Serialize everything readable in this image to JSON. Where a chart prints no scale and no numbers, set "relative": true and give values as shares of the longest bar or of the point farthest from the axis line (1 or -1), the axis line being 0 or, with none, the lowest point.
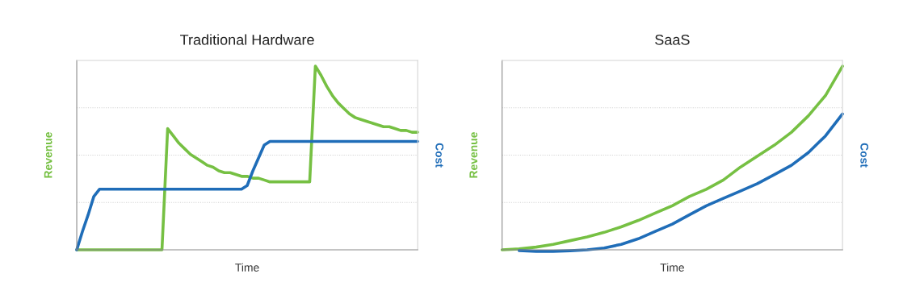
{
  "chart_data": [
    {
      "type": "line",
      "title": "Traditional Hardware",
      "xlabel": "Time",
      "ylabel": "Revenue",
      "y2label": "Cost",
      "relative": true,
      "grid": "y",
      "marker": "none",
      "line_style": "solid",
      "categories": [
        null,
        null,
        null,
        null,
        null,
        null,
        null,
        null,
        null,
        null,
        null,
        null,
        null,
        null,
        null,
        null,
        null,
        null,
        null,
        null,
        null,
        null,
        null,
        null,
        null,
        null,
        null,
        null,
        null,
        null,
        null,
        null,
        null,
        null,
        null,
        null,
        null,
        null,
        null,
        null,
        null,
        null,
        null,
        null,
        null,
        null,
        null,
        null,
        null,
        null,
        null,
        null,
        null,
        null,
        null,
        null,
        null,
        null,
        null,
        null,
        null
      ],
      "series": [
        {
          "color": "#76c043",
          "values": [
            0,
            0,
            0,
            0,
            0,
            0,
            0,
            0,
            0,
            0,
            0,
            0,
            0,
            0,
            0,
            0,
            0.66,
            0.62,
            0.58,
            0.55,
            0.52,
            0.5,
            0.48,
            0.46,
            0.45,
            0.43,
            0.42,
            0.42,
            0.41,
            0.4,
            0.4,
            0.39,
            0.39,
            0.38,
            0.37,
            0.37,
            0.37,
            0.37,
            0.37,
            0.37,
            0.37,
            0.37,
            1.0,
            0.95,
            0.89,
            0.84,
            0.8,
            0.77,
            0.74,
            0.72,
            0.71,
            0.7,
            0.69,
            0.68,
            0.67,
            0.67,
            0.66,
            0.65,
            0.65,
            0.64,
            0.64
          ]
        },
        {
          "color": "#1f6db8",
          "values": [
            0,
            0.1,
            0.19,
            0.29,
            0.33,
            0.33,
            0.33,
            0.33,
            0.33,
            0.33,
            0.33,
            0.33,
            0.33,
            0.33,
            0.33,
            0.33,
            0.33,
            0.33,
            0.33,
            0.33,
            0.33,
            0.33,
            0.33,
            0.33,
            0.33,
            0.33,
            0.33,
            0.33,
            0.33,
            0.33,
            0.35,
            0.43,
            0.5,
            0.57,
            0.59,
            0.59,
            0.59,
            0.59,
            0.59,
            0.59,
            0.59,
            0.59,
            0.59,
            0.59,
            0.59,
            0.59,
            0.59,
            0.59,
            0.59,
            0.59,
            0.59,
            0.59,
            0.59,
            0.59,
            0.59,
            0.59,
            0.59,
            0.59,
            0.59,
            0.59,
            0.59
          ]
        }
      ]
    },
    {
      "type": "line",
      "title": "SaaS",
      "xlabel": "Time",
      "ylabel": "Revenue",
      "y2label": "Cost",
      "relative": true,
      "grid": "y",
      "marker": "none",
      "line_style": "solid",
      "categories": [
        null,
        null,
        null,
        null,
        null,
        null,
        null,
        null,
        null,
        null,
        null,
        null,
        null,
        null,
        null,
        null,
        null,
        null,
        null,
        null,
        null
      ],
      "series": [
        {
          "color": "#76c043",
          "values": [
            0,
            0.005,
            0.015,
            0.03,
            0.05,
            0.07,
            0.095,
            0.125,
            0.16,
            0.2,
            0.24,
            0.29,
            0.33,
            0.38,
            0.45,
            0.51,
            0.57,
            0.64,
            0.73,
            0.84,
            1.0
          ]
        },
        {
          "color": "#1f6db8",
          "values": [
            null,
            -0.004,
            -0.008,
            -0.008,
            -0.005,
            0,
            0.01,
            0.03,
            0.06,
            0.1,
            0.14,
            0.19,
            0.24,
            0.28,
            0.32,
            0.36,
            0.41,
            0.46,
            0.53,
            0.62,
            0.74
          ]
        }
      ]
    }
  ]
}
